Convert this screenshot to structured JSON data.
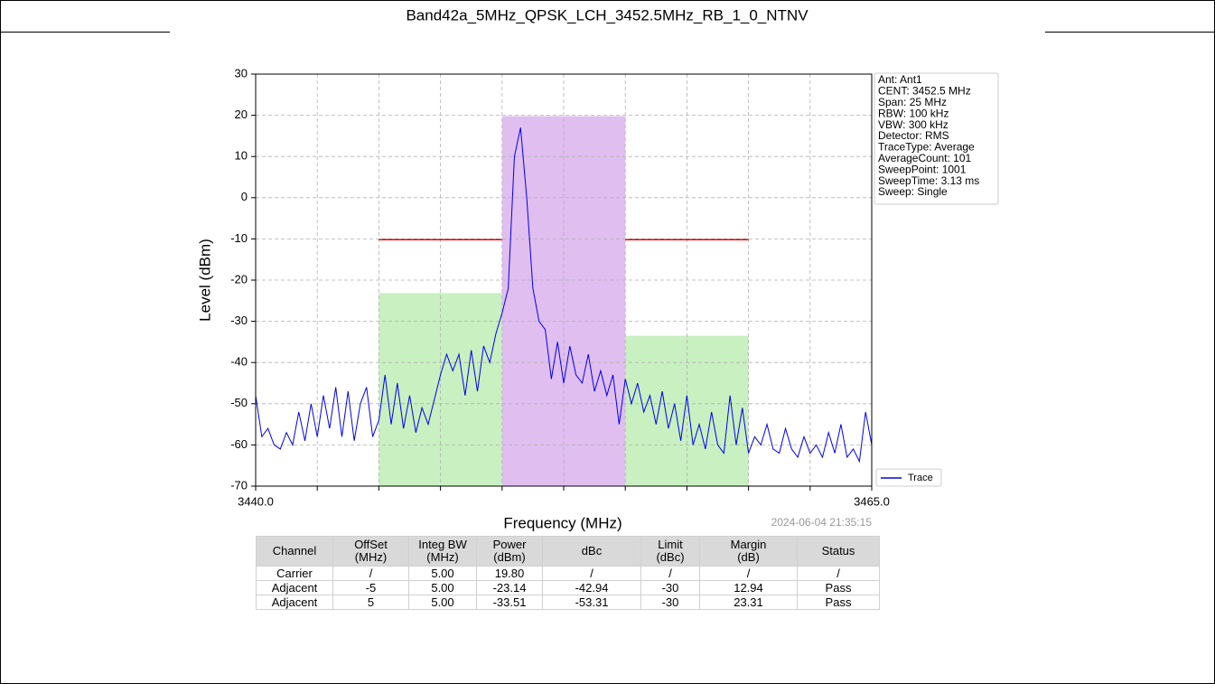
{
  "chart_data": {
    "type": "line",
    "title": "Band42a_5MHz_QPSK_LCH_3452.5MHz_RB_1_0_NTNV",
    "xlabel": "Frequency (MHz)",
    "ylabel": "Level (dBm)",
    "timestamp": "2024-06-04 21:35:15",
    "xlim": [
      3440,
      3465
    ],
    "ylim": [
      -70,
      30
    ],
    "xticks": [
      {
        "value": 3440,
        "label": "3440.0"
      },
      {
        "value": 3465,
        "label": "3465.0"
      }
    ],
    "xgrid": [
      3442.5,
      3445,
      3447.5,
      3450,
      3452.5,
      3455,
      3457.5,
      3460,
      3462.5
    ],
    "yticks": [
      -70,
      -60,
      -50,
      -40,
      -30,
      -20,
      -10,
      0,
      10,
      20,
      30
    ],
    "grid": true,
    "legend": "lower right",
    "series": [
      {
        "name": "Trace",
        "color": "#0000ee",
        "x": [
          3440,
          3440.25,
          3440.5,
          3440.75,
          3441,
          3441.25,
          3441.5,
          3441.75,
          3442,
          3442.25,
          3442.5,
          3442.75,
          3443,
          3443.25,
          3443.5,
          3443.75,
          3444,
          3444.25,
          3444.5,
          3444.75,
          3445,
          3445.25,
          3445.5,
          3445.75,
          3446,
          3446.25,
          3446.5,
          3446.75,
          3447,
          3447.25,
          3447.5,
          3447.75,
          3448,
          3448.25,
          3448.5,
          3448.75,
          3449,
          3449.25,
          3449.5,
          3449.75,
          3450,
          3450.25,
          3450.5,
          3450.75,
          3451,
          3451.25,
          3451.5,
          3451.75,
          3452,
          3452.25,
          3452.5,
          3452.75,
          3453,
          3453.25,
          3453.5,
          3453.75,
          3454,
          3454.25,
          3454.5,
          3454.75,
          3455,
          3455.25,
          3455.5,
          3455.75,
          3456,
          3456.25,
          3456.5,
          3456.75,
          3457,
          3457.25,
          3457.5,
          3457.75,
          3458,
          3458.25,
          3458.5,
          3458.75,
          3459,
          3459.25,
          3459.5,
          3459.75,
          3460,
          3460.25,
          3460.5,
          3460.75,
          3461,
          3461.25,
          3461.5,
          3461.75,
          3462,
          3462.25,
          3462.5,
          3462.75,
          3463,
          3463.25,
          3463.5,
          3463.75,
          3464,
          3464.25,
          3464.5,
          3464.75,
          3465
        ],
        "values": [
          -48,
          -58,
          -56,
          -60,
          -61,
          -57,
          -60,
          -52,
          -59,
          -50,
          -58,
          -48,
          -56,
          -46,
          -58,
          -47,
          -59,
          -50,
          -46,
          -58,
          -54,
          -43,
          -55,
          -45,
          -56,
          -48,
          -57,
          -51,
          -55,
          -49,
          -43,
          -38,
          -42,
          -38,
          -48,
          -37,
          -47,
          -36,
          -40,
          -33,
          -28,
          -22,
          10,
          17,
          0,
          -22,
          -30,
          -32,
          -44,
          -35,
          -45,
          -36,
          -43,
          -45,
          -38,
          -47,
          -42,
          -48,
          -43,
          -55,
          -44,
          -50,
          -45,
          -52,
          -48,
          -55,
          -47,
          -56,
          -50,
          -59,
          -48,
          -60,
          -55,
          -61,
          -52,
          -60,
          -62,
          -48,
          -60,
          -51,
          -62,
          -58,
          -60,
          -55,
          -61,
          -62,
          -56,
          -61,
          -63,
          -58,
          -62,
          -60,
          -63,
          -57,
          -62,
          -55,
          -63,
          -61,
          -64,
          -52,
          -60
        ]
      }
    ],
    "regions": [
      {
        "x": [
          3445,
          3450
        ],
        "value": -23.14,
        "color": "#c8f0c0"
      },
      {
        "x": [
          3450,
          3455
        ],
        "value": 19.8,
        "color": "#e0bef0"
      },
      {
        "x": [
          3455,
          3460
        ],
        "value": -33.51,
        "color": "#c8f0c0"
      }
    ],
    "limit_lines": [
      {
        "x": [
          3445,
          3450
        ],
        "value": -10.2,
        "color": "#ee0000"
      },
      {
        "x": [
          3455,
          3460
        ],
        "value": -10.2,
        "color": "#ee0000"
      }
    ],
    "info": [
      "Ant: Ant1",
      "CENT: 3452.5 MHz",
      "Span: 25 MHz",
      "RBW: 100 kHz",
      "VBW: 300 kHz",
      "Detector: RMS",
      "TraceType: Average",
      "AverageCount: 101",
      "SweepPoint: 1001",
      "SweepTime: 3.13 ms",
      "Sweep: Single"
    ],
    "table": {
      "header": [
        "Channel",
        "OffSet\n(MHz)",
        "Integ BW\n(MHz)",
        "Power\n(dBm)",
        "dBc",
        "Limit\n(dBc)",
        "Margin\n(dB)",
        "Status"
      ],
      "rows": [
        [
          "Carrier",
          "/",
          "5.00",
          "19.80",
          "/",
          "/",
          "/",
          "/"
        ],
        [
          "Adjacent",
          "-5",
          "5.00",
          "-23.14",
          "-42.94",
          "-30",
          "12.94",
          "Pass"
        ],
        [
          "Adjacent",
          "5",
          "5.00",
          "-33.51",
          "-53.31",
          "-30",
          "23.31",
          "Pass"
        ]
      ]
    }
  }
}
